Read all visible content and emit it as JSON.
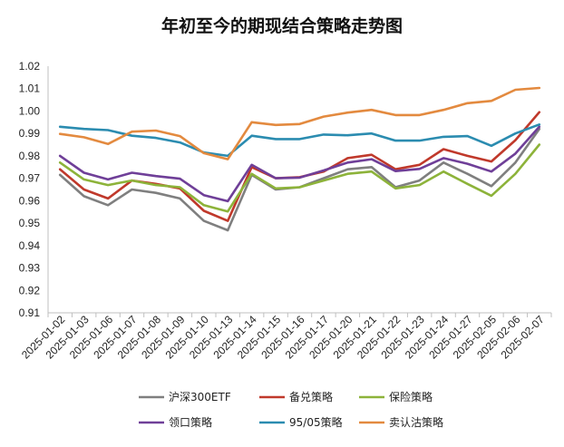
{
  "chart_data": {
    "type": "line",
    "title": "年初至今的期现结合策略走势图",
    "xlabel": "",
    "ylabel": "",
    "ylim": [
      0.91,
      1.02
    ],
    "yticks": [
      "1.02",
      "1.01",
      "1.00",
      "0.99",
      "0.98",
      "0.97",
      "0.96",
      "0.95",
      "0.94",
      "0.93",
      "0.92",
      "0.91"
    ],
    "grid": false,
    "legend_position": "bottom",
    "x": [
      "2025-01-02",
      "2025-01-03",
      "2025-01-06",
      "2025-01-07",
      "2025-01-08",
      "2025-01-09",
      "2025-01-10",
      "2025-01-13",
      "2025-01-14",
      "2025-01-15",
      "2025-01-16",
      "2025-01-17",
      "2025-01-20",
      "2025-01-21",
      "2025-01-22",
      "2025-01-23",
      "2025-01-24",
      "2025-01-27",
      "2025-02-05",
      "2025-02-06",
      "2025-02-07"
    ],
    "series": [
      {
        "name": "沪深300ETF",
        "color": "#7f7f7f",
        "values": [
          0.9715,
          0.962,
          0.958,
          0.965,
          0.9635,
          0.961,
          0.951,
          0.9468,
          0.9715,
          0.965,
          0.966,
          0.97,
          0.974,
          0.975,
          0.966,
          0.969,
          0.977,
          0.972,
          0.9665,
          0.977,
          0.992
        ]
      },
      {
        "name": "备兑策略",
        "color": "#c0392b",
        "values": [
          0.974,
          0.965,
          0.961,
          0.969,
          0.9675,
          0.9655,
          0.9555,
          0.951,
          0.975,
          0.97,
          0.9705,
          0.973,
          0.979,
          0.9805,
          0.974,
          0.976,
          0.983,
          0.98,
          0.9775,
          0.987,
          0.9995
        ]
      },
      {
        "name": "保险策略",
        "color": "#8db33a",
        "values": [
          0.977,
          0.9695,
          0.967,
          0.969,
          0.967,
          0.966,
          0.958,
          0.9552,
          0.972,
          0.9655,
          0.966,
          0.969,
          0.972,
          0.973,
          0.9655,
          0.967,
          0.973,
          0.9675,
          0.9622,
          0.972,
          0.985
        ]
      },
      {
        "name": "领口策略",
        "color": "#6f3f98",
        "values": [
          0.98,
          0.9725,
          0.9695,
          0.9725,
          0.971,
          0.9698,
          0.9625,
          0.9598,
          0.976,
          0.97,
          0.9703,
          0.9735,
          0.977,
          0.9785,
          0.9732,
          0.9742,
          0.979,
          0.9765,
          0.973,
          0.981,
          0.993
        ]
      },
      {
        "name": "95/05策略",
        "color": "#2b8cb0",
        "values": [
          0.993,
          0.992,
          0.9915,
          0.989,
          0.988,
          0.986,
          0.9815,
          0.98,
          0.989,
          0.9875,
          0.9875,
          0.9895,
          0.9892,
          0.99,
          0.9868,
          0.9868,
          0.9885,
          0.9888,
          0.9845,
          0.99,
          0.994
        ]
      },
      {
        "name": "卖认沽策略",
        "color": "#e38a3f",
        "values": [
          0.9898,
          0.9883,
          0.9853,
          0.9908,
          0.9913,
          0.9888,
          0.9812,
          0.9785,
          0.995,
          0.9938,
          0.9942,
          0.9975,
          0.9993,
          1.0005,
          0.9982,
          0.9982,
          1.0005,
          1.0035,
          1.0045,
          1.0095,
          1.0103
        ]
      }
    ]
  }
}
